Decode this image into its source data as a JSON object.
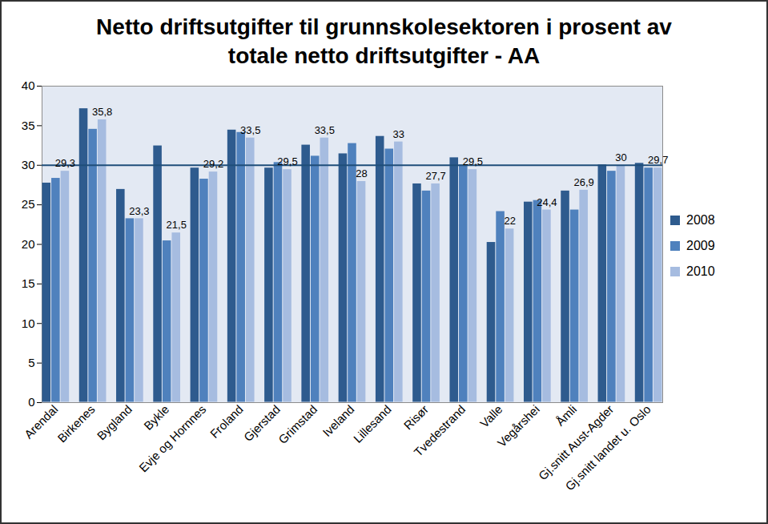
{
  "chart_data": {
    "type": "bar",
    "title": "Netto driftsutgifter til grunnskolesektoren i prosent av totale netto driftsutgifter - AA",
    "categories": [
      "Arendal",
      "Birkenes",
      "Bygland",
      "Bykle",
      "Evje og Hornnes",
      "Froland",
      "Gjerstad",
      "Grimstad",
      "Iveland",
      "Lillesand",
      "Risør",
      "Tvedestrand",
      "Valle",
      "Vegårshei",
      "Åmli",
      "Gj.snitt Aust-Agder",
      "Gj.snitt landet u. Oslo"
    ],
    "series": [
      {
        "name": "2008",
        "color": "#2e5b8e",
        "values": [
          27.8,
          37.2,
          27.0,
          32.5,
          29.7,
          34.5,
          29.7,
          32.6,
          31.5,
          33.7,
          27.7,
          31.0,
          20.3,
          25.4,
          26.8,
          30.1,
          30.3
        ]
      },
      {
        "name": "2009",
        "color": "#4f81bd",
        "values": [
          28.4,
          34.6,
          23.3,
          20.5,
          28.3,
          34.2,
          30.4,
          31.2,
          32.8,
          32.1,
          26.8,
          30.1,
          24.2,
          25.6,
          24.4,
          29.3,
          29.7
        ]
      },
      {
        "name": "2010",
        "color": "#a6bce0",
        "values": [
          29.3,
          35.8,
          23.3,
          21.5,
          29.2,
          33.5,
          29.5,
          33.5,
          28,
          33,
          27.7,
          29.5,
          22,
          24.4,
          26.9,
          30,
          29.7
        ],
        "value_labels": [
          "29,3",
          "35,8",
          "23,3",
          "21,5",
          "29,2",
          "33,5",
          "29,5",
          "33,5",
          "28",
          "33",
          "27,7",
          "29,5",
          "22",
          "24,4",
          "26,9",
          "30",
          "29,7"
        ]
      }
    ],
    "reference_line": 30,
    "ylim": [
      0,
      40
    ],
    "yticks": [
      0,
      5,
      10,
      15,
      20,
      25,
      30,
      35,
      40
    ],
    "grid": false,
    "legend": "right",
    "data_labels": true
  }
}
